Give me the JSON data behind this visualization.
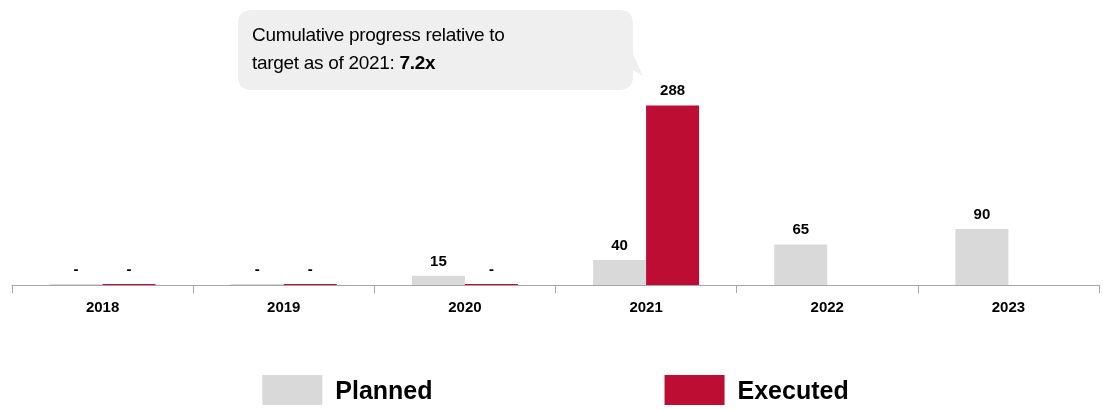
{
  "chart_data": {
    "type": "bar",
    "categories": [
      "2018",
      "2019",
      "2020",
      "2021",
      "2022",
      "2023"
    ],
    "series": [
      {
        "name": "Planned",
        "color": "#d9d9d9",
        "values": [
          0,
          0,
          15,
          40,
          65,
          90
        ],
        "value_labels": [
          "-",
          "-",
          "15",
          "40",
          "65",
          "90"
        ]
      },
      {
        "name": "Executed",
        "color": "#bd0d32",
        "values": [
          0,
          0,
          0,
          288,
          null,
          null
        ],
        "value_labels": [
          "-",
          "-",
          "-",
          "288",
          null,
          null
        ]
      }
    ],
    "annotations": [
      "Cumulative progress relative to target as of 2021: 7.2x"
    ],
    "legend": "bottom",
    "grid": false
  }
}
